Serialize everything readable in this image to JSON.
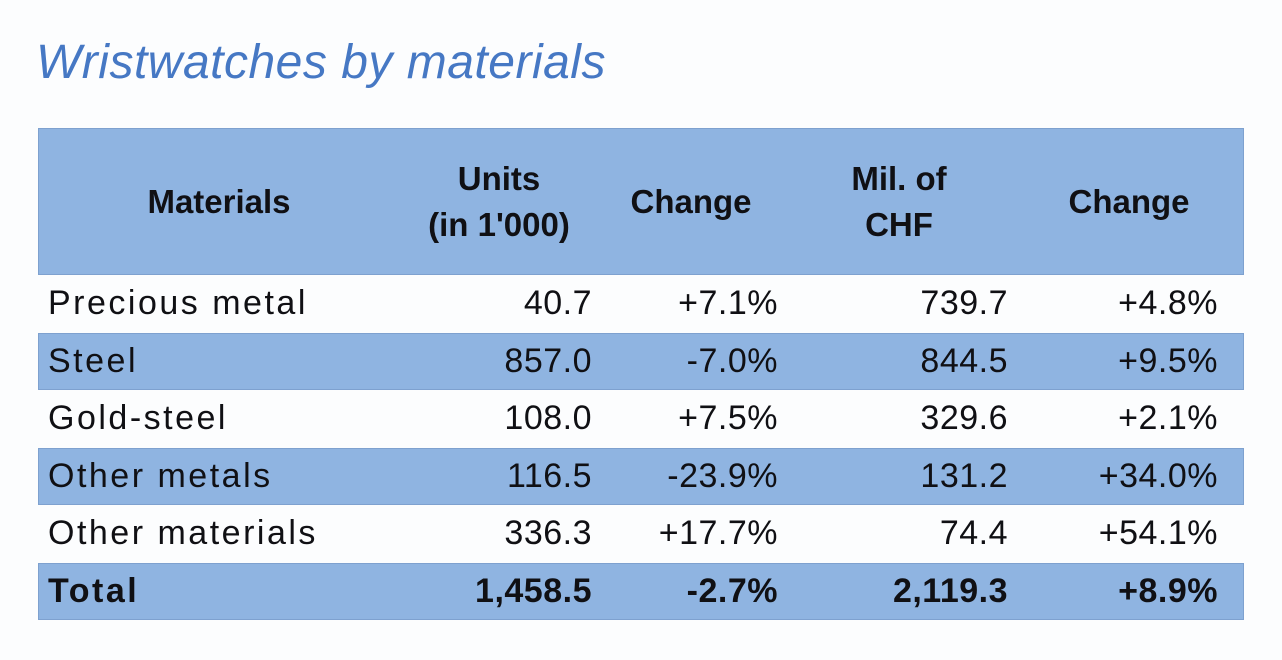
{
  "title": "Wristwatches by materials",
  "colors": {
    "title_blue": "#4678c4",
    "band_blue": "#8fb4e1",
    "text": "#101014",
    "background": "#fcfdfe"
  },
  "table": {
    "headers": [
      {
        "line1": "Materials"
      },
      {
        "line1": "Units",
        "line2": "(in 1'000)"
      },
      {
        "line1": "Change"
      },
      {
        "line1": "Mil. of",
        "line2": "CHF"
      },
      {
        "line1": "Change"
      }
    ],
    "rows": [
      {
        "material": "Precious metal",
        "units": "40.7",
        "units_change": "+7.1%",
        "chf": "739.7",
        "chf_change": "+4.8%"
      },
      {
        "material": "Steel",
        "units": "857.0",
        "units_change": "-7.0%",
        "chf": "844.5",
        "chf_change": "+9.5%"
      },
      {
        "material": "Gold-steel",
        "units": "108.0",
        "units_change": "+7.5%",
        "chf": "329.6",
        "chf_change": "+2.1%"
      },
      {
        "material": "Other metals",
        "units": "116.5",
        "units_change": "-23.9%",
        "chf": "131.2",
        "chf_change": "+34.0%"
      },
      {
        "material": "Other materials",
        "units": "336.3",
        "units_change": "+17.7%",
        "chf": "74.4",
        "chf_change": "+54.1%"
      },
      {
        "material": "Total",
        "units": "1,458.5",
        "units_change": "-2.7%",
        "chf": "2,119.3",
        "chf_change": "+8.9%"
      }
    ]
  },
  "chart_data": {
    "type": "table",
    "title": "Wristwatches by materials",
    "columns": [
      "Materials",
      "Units (in 1'000)",
      "Change",
      "Mil. of CHF",
      "Change"
    ],
    "rows": [
      [
        "Precious metal",
        40.7,
        "+7.1%",
        739.7,
        "+4.8%"
      ],
      [
        "Steel",
        857.0,
        "-7.0%",
        844.5,
        "+9.5%"
      ],
      [
        "Gold-steel",
        108.0,
        "+7.5%",
        329.6,
        "+2.1%"
      ],
      [
        "Other metals",
        116.5,
        "-23.9%",
        131.2,
        "+34.0%"
      ],
      [
        "Other materials",
        336.3,
        "+17.7%",
        74.4,
        "+54.1%"
      ],
      [
        "Total",
        1458.5,
        "-2.7%",
        2119.3,
        "+8.9%"
      ]
    ],
    "layout": {
      "header_background": "#8fb4e1",
      "banded_rows": true,
      "total_row_bold": true
    }
  }
}
